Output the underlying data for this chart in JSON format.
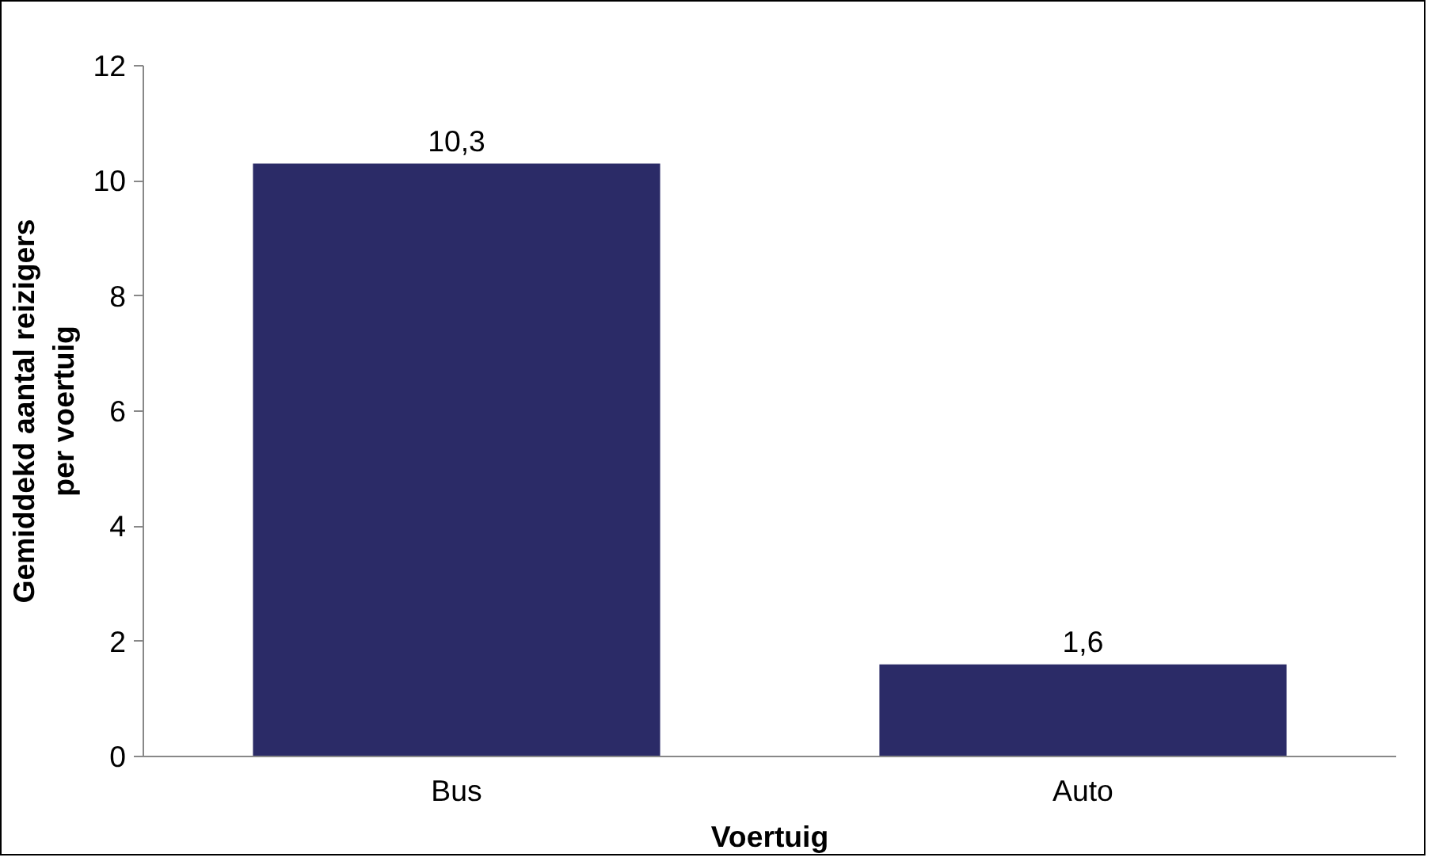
{
  "chart_data": {
    "type": "bar",
    "xlabel": "Voertuig",
    "ylabel": "Gemiddekd aantal reizigers\nper voertuig",
    "categories": [
      "Bus",
      "Auto"
    ],
    "values": [
      10.3,
      1.6
    ],
    "value_labels": [
      "10,3",
      "1,6"
    ],
    "color": "#2b2b67",
    "ylim": [
      0,
      12
    ],
    "yticks": [
      0,
      2,
      4,
      6,
      8,
      10,
      12
    ],
    "grid": false
  }
}
